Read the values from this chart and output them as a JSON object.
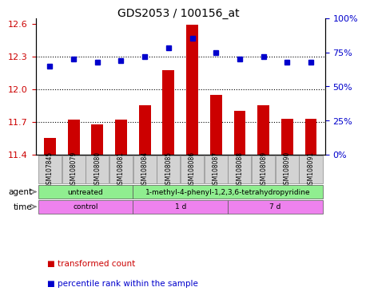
{
  "title": "GDS2053 / 100156_at",
  "samples": [
    "GSM107845",
    "GSM108079",
    "GSM108080",
    "GSM108081",
    "GSM108084",
    "GSM108085",
    "GSM108086",
    "GSM108087",
    "GSM108088",
    "GSM108089",
    "GSM108090",
    "GSM108091"
  ],
  "bar_values": [
    11.55,
    11.72,
    11.68,
    11.72,
    11.85,
    12.17,
    12.59,
    11.95,
    11.8,
    11.85,
    11.73,
    11.73
  ],
  "dot_values": [
    65,
    70,
    68,
    69,
    72,
    78,
    85,
    75,
    70,
    72,
    68,
    68
  ],
  "bar_color": "#cc0000",
  "dot_color": "#0000cc",
  "ylim_left": [
    11.4,
    12.65
  ],
  "ylim_right": [
    0,
    100
  ],
  "yticks_left": [
    11.4,
    11.7,
    12.0,
    12.3,
    12.6
  ],
  "yticks_right": [
    0,
    25,
    50,
    75,
    100
  ],
  "ytick_labels_right": [
    "0%",
    "25%",
    "50%",
    "75%",
    "100%"
  ],
  "hlines": [
    11.7,
    12.0,
    12.3
  ],
  "agent_groups": [
    {
      "label": "untreated",
      "start": 0,
      "end": 4,
      "color": "#90ee90"
    },
    {
      "label": "1-methyl-4-phenyl-1,2,3,6-tetrahydropyridine",
      "start": 4,
      "end": 12,
      "color": "#90ee90"
    }
  ],
  "time_groups": [
    {
      "label": "control",
      "start": 0,
      "end": 4,
      "color": "#ee82ee"
    },
    {
      "label": "1 d",
      "start": 4,
      "end": 8,
      "color": "#ee82ee"
    },
    {
      "label": "7 d",
      "start": 8,
      "end": 12,
      "color": "#ee82ee"
    }
  ],
  "legend_items": [
    {
      "label": "transformed count",
      "color": "#cc0000",
      "marker": "s"
    },
    {
      "label": "percentile rank within the sample",
      "color": "#0000cc",
      "marker": "s"
    }
  ],
  "background_color": "#ffffff",
  "plot_bg": "#ffffff",
  "grid_color": "#000000",
  "tick_label_color_left": "#cc0000",
  "tick_label_color_right": "#0000cc"
}
